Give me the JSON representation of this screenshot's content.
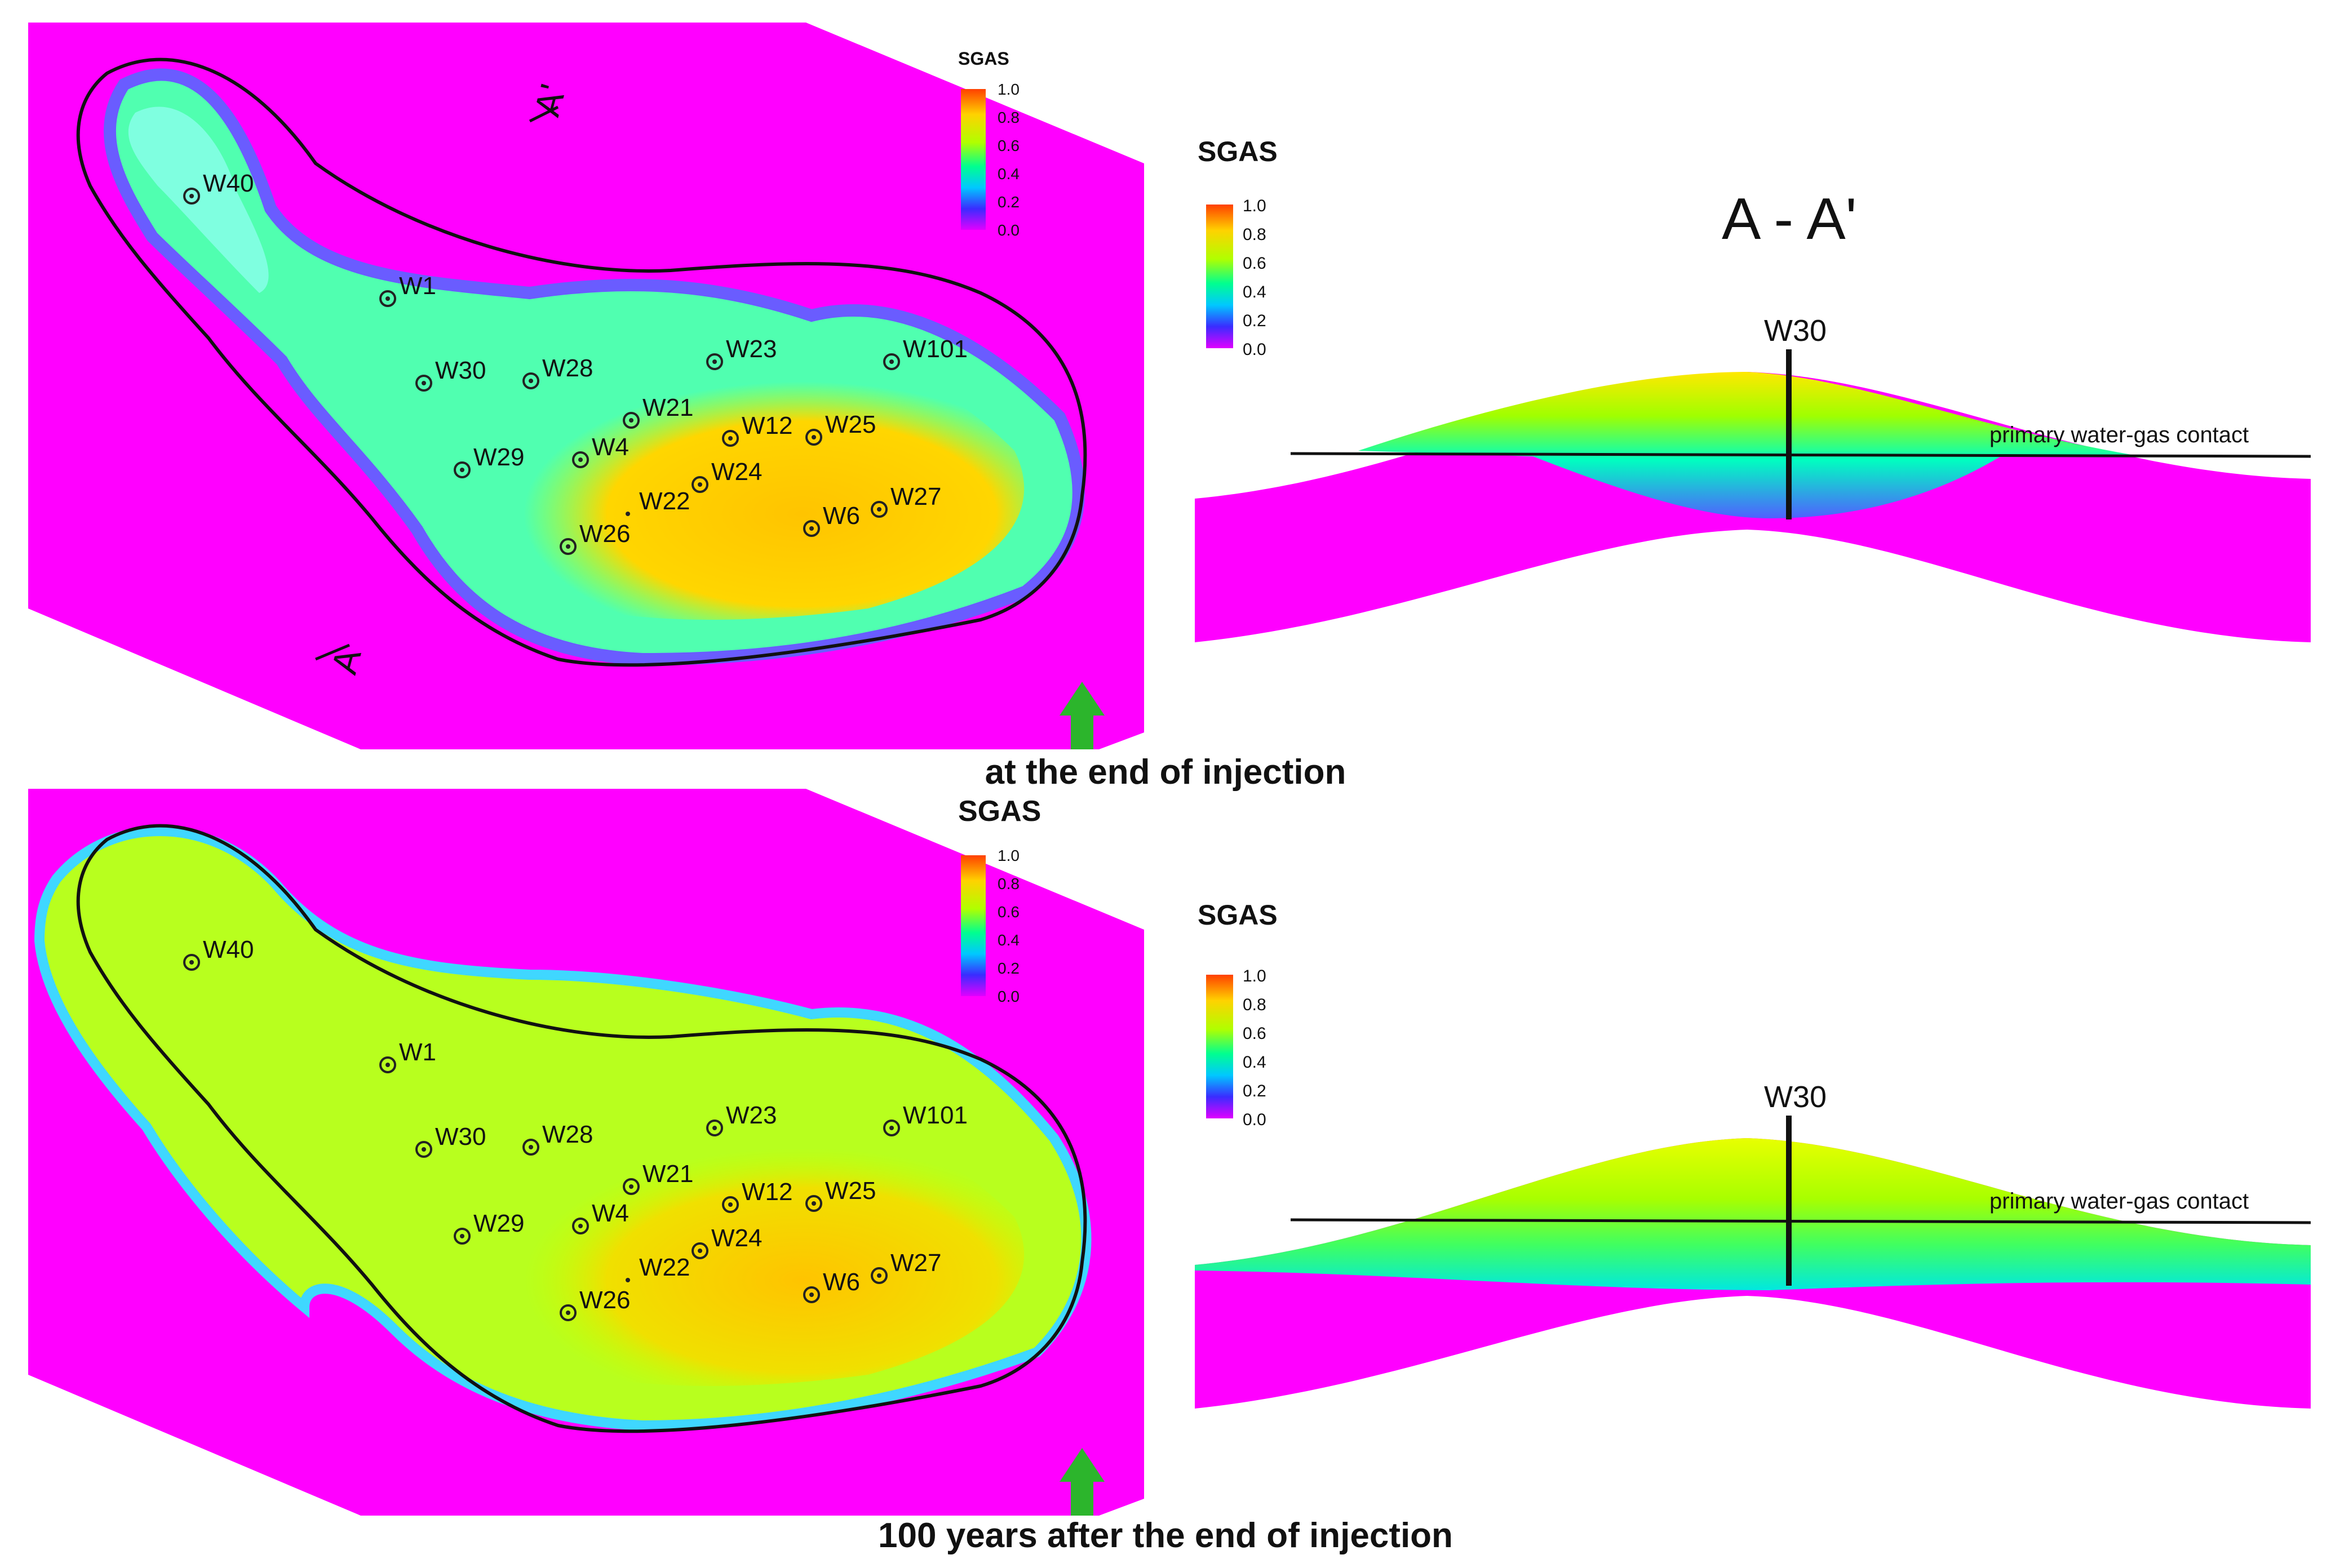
{
  "palette": {
    "background": "#ff00ff",
    "outline": "#111111",
    "arrow": "#2cb52c",
    "text": "#111111"
  },
  "colorbar": {
    "title": "SGAS",
    "ticks": [
      "1.0",
      "0.8",
      "0.6",
      "0.4",
      "0.2",
      "0.0"
    ],
    "stops": [
      "#ff5a00",
      "#ffd200",
      "#a8ff00",
      "#00ff90",
      "#00c8ff",
      "#3a2cff",
      "#e000ff"
    ]
  },
  "cross_section": {
    "title": "A - A'",
    "well_label": "W30",
    "contact_label": "primary water-gas contact"
  },
  "section_marks": {
    "a": "A",
    "a_prime": "A'"
  },
  "panels": [
    {
      "caption": "at the end of injection",
      "map_title": "SGAS",
      "section_title": "SGAS",
      "wells": [
        {
          "name": "W40"
        },
        {
          "name": "W1"
        },
        {
          "name": "W30"
        },
        {
          "name": "W28"
        },
        {
          "name": "W23"
        },
        {
          "name": "W101"
        },
        {
          "name": "W21"
        },
        {
          "name": "W12"
        },
        {
          "name": "W25"
        },
        {
          "name": "W29"
        },
        {
          "name": "W4"
        },
        {
          "name": "W24"
        },
        {
          "name": "W22"
        },
        {
          "name": "W26"
        },
        {
          "name": "W6"
        },
        {
          "name": "W27"
        }
      ]
    },
    {
      "caption": "100 years after the end of injection",
      "map_title": "SGAS",
      "section_title": "SGAS",
      "wells": [
        {
          "name": "W40"
        },
        {
          "name": "W1"
        },
        {
          "name": "W30"
        },
        {
          "name": "W28"
        },
        {
          "name": "W23"
        },
        {
          "name": "W101"
        },
        {
          "name": "W21"
        },
        {
          "name": "W12"
        },
        {
          "name": "W25"
        },
        {
          "name": "W29"
        },
        {
          "name": "W4"
        },
        {
          "name": "W24"
        },
        {
          "name": "W22"
        },
        {
          "name": "W26"
        },
        {
          "name": "W6"
        },
        {
          "name": "W27"
        }
      ]
    }
  ]
}
